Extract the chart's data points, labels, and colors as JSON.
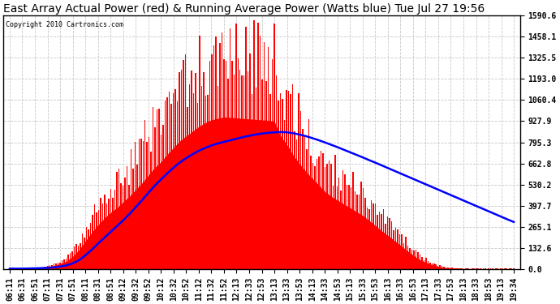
{
  "title": "East Array Actual Power (red) & Running Average Power (Watts blue) Tue Jul 27 19:56",
  "copyright": "Copyright 2010 Cartronics.com",
  "yticks": [
    0.0,
    132.6,
    265.1,
    397.7,
    530.2,
    662.8,
    795.3,
    927.9,
    1060.4,
    1193.0,
    1325.5,
    1458.1,
    1590.6
  ],
  "xtick_labels": [
    "06:11",
    "06:31",
    "06:51",
    "07:11",
    "07:31",
    "07:51",
    "08:11",
    "08:31",
    "08:51",
    "09:12",
    "09:32",
    "09:52",
    "10:12",
    "10:32",
    "10:52",
    "11:12",
    "11:32",
    "11:52",
    "12:13",
    "12:33",
    "12:53",
    "13:13",
    "13:33",
    "13:53",
    "14:13",
    "14:33",
    "14:53",
    "15:13",
    "15:33",
    "15:53",
    "16:13",
    "16:33",
    "16:53",
    "17:13",
    "17:33",
    "17:53",
    "18:13",
    "18:33",
    "18:53",
    "19:13",
    "19:34"
  ],
  "bg_color": "#ffffff",
  "plot_bg_color": "#ffffff",
  "grid_color": "#c8c8c8",
  "red_color": "#ff0000",
  "blue_color": "#0000ff",
  "title_fontsize": 10,
  "tick_fontsize": 7,
  "ylim": [
    0.0,
    1590.6
  ],
  "envelope": [
    2,
    2,
    2,
    5,
    8,
    12,
    20,
    35,
    55,
    80,
    130,
    200,
    290,
    380,
    460,
    530,
    590,
    640,
    700,
    760,
    830,
    900,
    980,
    1060,
    1120,
    1200,
    1270,
    1340,
    1390,
    1440,
    1490,
    1530,
    1560,
    1575,
    1590,
    1585,
    1580,
    1575,
    1570,
    1565,
    1560,
    1555,
    1545,
    1390,
    1300,
    1190,
    1100,
    1020,
    950,
    880,
    810,
    760,
    720,
    680,
    640,
    600,
    560,
    510,
    455,
    400,
    350,
    300,
    250,
    195,
    145,
    100,
    70,
    45,
    25,
    15,
    8,
    5,
    3,
    2,
    2,
    2,
    2,
    2,
    2,
    2,
    2
  ],
  "running_avg": [
    2,
    2,
    2,
    3,
    4,
    5,
    7,
    10,
    15,
    22,
    35,
    55,
    85,
    120,
    158,
    195,
    232,
    268,
    305,
    345,
    388,
    432,
    478,
    522,
    562,
    600,
    636,
    668,
    696,
    720,
    742,
    760,
    775,
    788,
    798,
    808,
    818,
    828,
    836,
    844,
    850,
    855,
    858,
    860,
    858,
    852,
    844,
    834,
    822,
    809,
    795,
    780,
    765,
    749,
    733,
    717,
    701,
    684,
    668,
    651,
    634,
    617,
    600,
    583,
    566,
    549,
    532,
    515,
    498,
    481,
    464,
    447,
    430,
    413,
    396,
    379,
    362,
    345,
    328,
    311,
    295
  ]
}
